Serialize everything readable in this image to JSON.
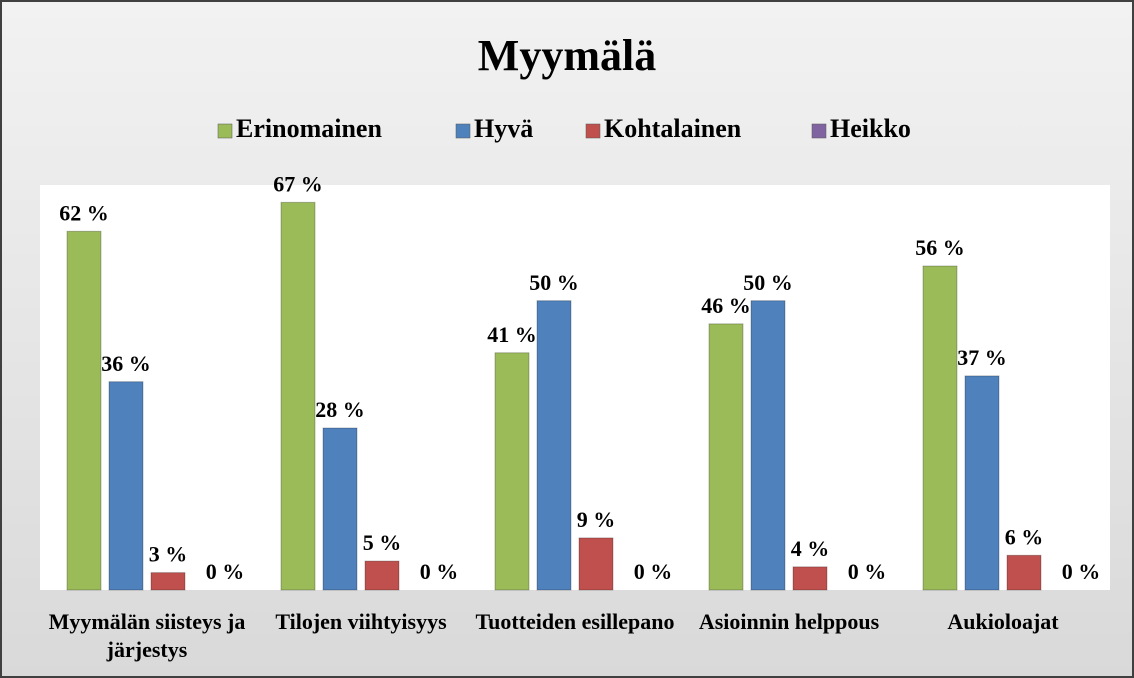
{
  "chart_data": {
    "type": "bar",
    "title": "Myymälä",
    "categories": [
      "Myymälän siisteys ja järjestys",
      "Tilojen viihtyisyys",
      "Tuotteiden esillepano",
      "Asioinnin helppous",
      "Aukioloajat"
    ],
    "series": [
      {
        "name": "Erinomainen",
        "color": "#9bbb59",
        "values": [
          62,
          67,
          41,
          46,
          56
        ],
        "value_labels": [
          "62 %",
          "67 %",
          "41 %",
          "46 %",
          "56 %"
        ]
      },
      {
        "name": "Hyvä",
        "color": "#4f81bd",
        "values": [
          36,
          28,
          50,
          50,
          37
        ],
        "value_labels": [
          "36 %",
          "28 %",
          "50 %",
          "50 %",
          "37 %"
        ]
      },
      {
        "name": "Kohtalainen",
        "color": "#c0504d",
        "values": [
          3,
          5,
          9,
          4,
          6
        ],
        "value_labels": [
          "3 %",
          "5 %",
          "9 %",
          "4 %",
          "6 %"
        ]
      },
      {
        "name": "Heikko",
        "color": "#8064a2",
        "values": [
          0,
          0,
          0,
          0,
          0
        ],
        "value_labels": [
          "0 %",
          "0 %",
          "0 %",
          "0 %",
          "0 %"
        ]
      }
    ],
    "ylim": [
      0,
      70
    ],
    "legend": "top"
  }
}
